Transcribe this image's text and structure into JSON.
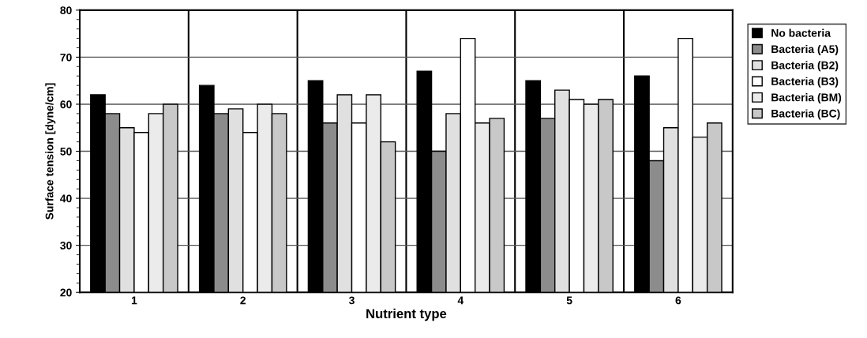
{
  "chart_data": {
    "type": "bar",
    "xlabel": "Nutrient type",
    "ylabel": "Surface tension [dyne/cm]",
    "categories": [
      "1",
      "2",
      "3",
      "4",
      "5",
      "6"
    ],
    "series": [
      {
        "name": "No bacteria",
        "color": "#000000",
        "values": [
          62,
          64,
          65,
          67,
          65,
          66
        ]
      },
      {
        "name": "Bacteria (A5)",
        "color": "#8c8c8c",
        "values": [
          58,
          58,
          56,
          50,
          57,
          48
        ]
      },
      {
        "name": "Bacteria (B2)",
        "color": "#e0e0e0",
        "values": [
          55,
          59,
          62,
          58,
          63,
          55
        ]
      },
      {
        "name": "Bacteria (B3)",
        "color": "#ffffff",
        "values": [
          54,
          54,
          56,
          74,
          61,
          74
        ]
      },
      {
        "name": "Bacteria (BM)",
        "color": "#ebebeb",
        "values": [
          58,
          60,
          62,
          56,
          60,
          53
        ]
      },
      {
        "name": "Bacteria (BC)",
        "color": "#c8c8c8",
        "values": [
          60,
          58,
          52,
          57,
          61,
          56
        ]
      }
    ],
    "ylim": [
      20,
      80
    ],
    "yticks": [
      20,
      30,
      40,
      50,
      60,
      70,
      80
    ],
    "grid": true,
    "legend": "right"
  }
}
